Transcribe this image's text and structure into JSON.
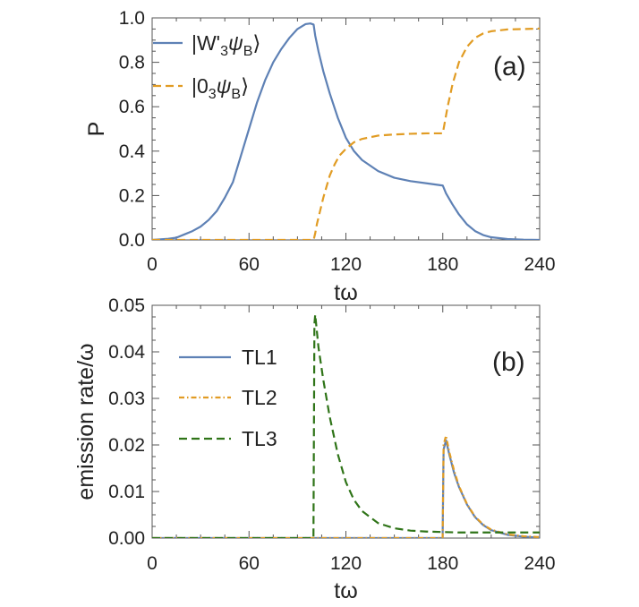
{
  "chart_data": [
    {
      "type": "line",
      "panel_label": "(a)",
      "xlabel": "tω",
      "ylabel": "P",
      "xlim": [
        0,
        240
      ],
      "ylim": [
        0,
        1.0
      ],
      "xticks": [
        "0",
        "60",
        "120",
        "180",
        "240"
      ],
      "yticks": [
        "0.0",
        "0.2",
        "0.4",
        "0.6",
        "0.8",
        "1.0"
      ],
      "legend_position": "top-left",
      "grid": false,
      "series": [
        {
          "name": "|W'₃ψB⟩",
          "name_parts": {
            "open": "|W'",
            "sub1": "3",
            "psi": "ψ",
            "sub2": "B",
            "close": "⟩"
          },
          "color": "#5e81b5",
          "style": "solid",
          "x": [
            0,
            10,
            15,
            20,
            25,
            30,
            35,
            40,
            45,
            50,
            55,
            60,
            65,
            70,
            75,
            80,
            85,
            90,
            95,
            98,
            100,
            101,
            103,
            106,
            110,
            115,
            120,
            125,
            130,
            140,
            150,
            160,
            170,
            180,
            182,
            186,
            190,
            195,
            200,
            205,
            210,
            220,
            230,
            240
          ],
          "y": [
            0.0,
            0.005,
            0.01,
            0.025,
            0.04,
            0.06,
            0.09,
            0.13,
            0.19,
            0.26,
            0.38,
            0.5,
            0.62,
            0.72,
            0.8,
            0.86,
            0.91,
            0.95,
            0.972,
            0.975,
            0.97,
            0.92,
            0.85,
            0.76,
            0.66,
            0.55,
            0.46,
            0.4,
            0.36,
            0.31,
            0.28,
            0.265,
            0.255,
            0.245,
            0.21,
            0.16,
            0.115,
            0.07,
            0.04,
            0.022,
            0.012,
            0.004,
            0.001,
            0.0
          ]
        },
        {
          "name": "|0₃ψB⟩",
          "name_parts": {
            "open": "|0",
            "sub1": "3",
            "psi": "ψ",
            "sub2": "B",
            "close": "⟩"
          },
          "color": "#e19c24",
          "style": "dashed",
          "x": [
            0,
            100,
            101,
            102,
            104,
            106,
            108,
            110,
            113,
            116,
            120,
            125,
            130,
            140,
            150,
            160,
            170,
            180,
            181,
            183,
            186,
            190,
            195,
            200,
            205,
            210,
            220,
            230,
            240
          ],
          "y": [
            0.0,
            0.0,
            0.03,
            0.07,
            0.13,
            0.19,
            0.24,
            0.29,
            0.34,
            0.38,
            0.41,
            0.44,
            0.455,
            0.47,
            0.475,
            0.478,
            0.48,
            0.48,
            0.52,
            0.6,
            0.7,
            0.8,
            0.87,
            0.91,
            0.93,
            0.94,
            0.948,
            0.95,
            0.952
          ]
        }
      ]
    },
    {
      "type": "line",
      "panel_label": "(b)",
      "xlabel": "tω",
      "ylabel": "emission rate/ω",
      "xlim": [
        0,
        240
      ],
      "ylim": [
        0,
        0.05
      ],
      "xticks": [
        "0",
        "60",
        "120",
        "180",
        "240"
      ],
      "yticks": [
        "0.00",
        "0.01",
        "0.02",
        "0.03",
        "0.04",
        "0.05"
      ],
      "legend_position": "top-left",
      "grid": false,
      "series": [
        {
          "name": "TL1",
          "color": "#5e81b5",
          "style": "solid",
          "x": [
            0,
            179.9,
            180.5,
            182,
            184,
            187,
            190,
            195,
            200,
            205,
            210,
            220,
            230,
            240
          ],
          "y": [
            0.0,
            0.0,
            0.019,
            0.021,
            0.018,
            0.014,
            0.011,
            0.0072,
            0.0045,
            0.0028,
            0.0017,
            0.0007,
            0.0003,
            0.0001
          ]
        },
        {
          "name": "TL2",
          "color": "#e19c24",
          "style": "dashdot",
          "x": [
            0,
            179.9,
            180.5,
            182,
            184,
            187,
            190,
            195,
            200,
            205,
            210,
            220,
            230,
            240
          ],
          "y": [
            0.0,
            0.0,
            0.02,
            0.022,
            0.0185,
            0.0145,
            0.0112,
            0.0073,
            0.0046,
            0.0029,
            0.0018,
            0.0008,
            0.0004,
            0.0002
          ]
        },
        {
          "name": "TL3",
          "color": "#2f7418",
          "style": "dashed",
          "x": [
            0,
            99.9,
            100.5,
            101,
            103,
            106,
            110,
            115,
            120,
            125,
            130,
            140,
            150,
            160,
            170,
            180,
            190,
            200,
            210,
            220,
            230,
            240
          ],
          "y": [
            0.0,
            0.0,
            0.046,
            0.048,
            0.041,
            0.034,
            0.026,
            0.018,
            0.012,
            0.0082,
            0.0058,
            0.0032,
            0.0021,
            0.0016,
            0.0014,
            0.0013,
            0.0012,
            0.0012,
            0.0012,
            0.0012,
            0.0012,
            0.0012
          ]
        }
      ]
    }
  ]
}
